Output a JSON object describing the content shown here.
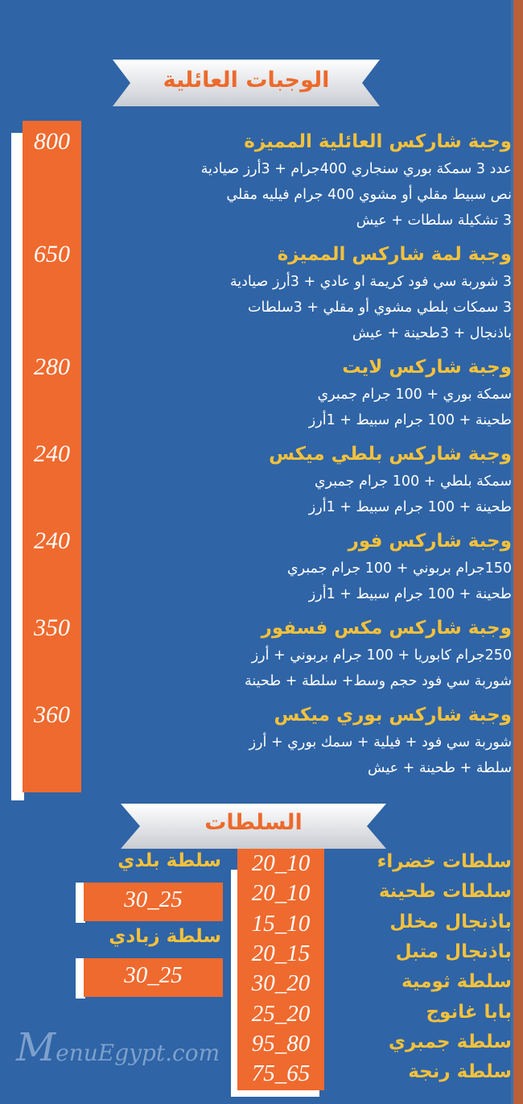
{
  "colors": {
    "background": "#2f64a6",
    "accent_orange": "#ef6a2e",
    "title_yellow": "#f4c13c",
    "text": "#ffffff"
  },
  "watermark": "MenuEgypt.com",
  "family_meals": {
    "heading": "الوجبات العائلية",
    "items": [
      {
        "name": "وجبة شاركس العائلية المميزة",
        "price": "800",
        "lines": [
          "عدد 3 سمكة بوري سنجاري 400جرام + 3أرز صيادية",
          "نص سبيط مقلي أو مشوي 400 جرام فيليه مقلي",
          "3 تشكيلة سلطات + عيش"
        ]
      },
      {
        "name": "وجبة لمة شاركس المميزة",
        "price": "650",
        "lines": [
          "3 شوربة سي فود كريمة او عادي + 3أرز صيادية",
          "3 سمكات بلطي مشوي أو مقلي + 3سلطات",
          "باذنجال + 3طحينة + عيش"
        ]
      },
      {
        "name": "وجبة شاركس لايت",
        "price": "280",
        "lines": [
          "سمكة بوري + 100 جرام جمبري",
          "طحينة + 100 جرام سبيط + 1أرز"
        ]
      },
      {
        "name": "وجبة شاركس بلطي ميكس",
        "price": "240",
        "lines": [
          "سمكة بلطي + 100 جرام جمبري",
          "طحينة + 100 جرام سبيط + 1أرز"
        ]
      },
      {
        "name": "وجبة شاركس فور",
        "price": "240",
        "lines": [
          "150جرام بربوني + 100 جرام جمبري",
          "طحينة + 100 جرام سبيط + 1أرز"
        ]
      },
      {
        "name": "وجبة شاركس مكس فسفور",
        "price": "350",
        "lines": [
          "250جرام كابوريا + 100 جرام بربوني + أرز",
          "شوربة سي فود حجم وسط+ سلطة + طحينة"
        ]
      },
      {
        "name": "وجبة شاركس بوري ميكس",
        "price": "360",
        "lines": [
          "شوربة سي فود + فيلية + سمك بوري + أرز",
          "سلطة + طحينة + عيش"
        ]
      }
    ]
  },
  "salads": {
    "heading": "السلطات",
    "items": [
      {
        "name": "سلطات خضراء",
        "price": "20_10"
      },
      {
        "name": "سلطات طحينة",
        "price": "20_10"
      },
      {
        "name": "باذنجال مخلل",
        "price": "15_10"
      },
      {
        "name": "باذنجال متبل",
        "price": "20_15"
      },
      {
        "name": "سلطة ثومية",
        "price": "30_20"
      },
      {
        "name": "بابا غانوج",
        "price": "25_20"
      },
      {
        "name": "سلطة جمبري",
        "price": "95_80"
      },
      {
        "name": "سلطة رنجة",
        "price": "75_65"
      }
    ],
    "extra": [
      {
        "name": "سلطة بلدي",
        "price": "30_25"
      },
      {
        "name": "سلطة زبادي",
        "price": "30_25"
      }
    ]
  }
}
